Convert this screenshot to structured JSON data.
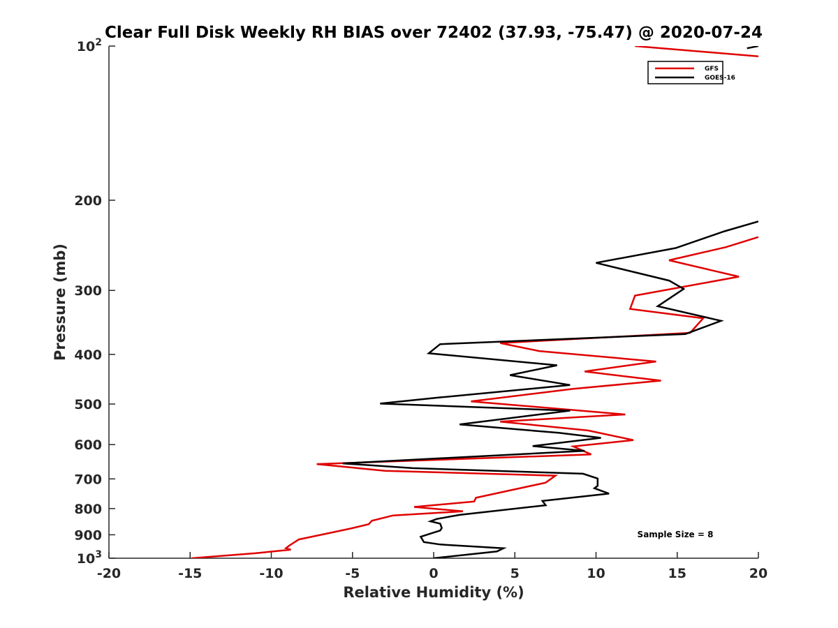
{
  "chart_data": {
    "type": "line",
    "title": "Clear Full Disk Weekly RH BIAS over 72402 (37.93, -75.47) @ 2020-07-24",
    "xlabel": "Relative Humidity (%)",
    "ylabel": "Pressure (mb)",
    "xlim": [
      -20,
      20
    ],
    "ylim": [
      100,
      1000
    ],
    "yscale": "log",
    "y_reversed": true,
    "x_ticks": [
      -20,
      -15,
      -10,
      -5,
      0,
      5,
      10,
      15,
      20
    ],
    "x_tick_labels": [
      "-20",
      "-15",
      "-10",
      "-5",
      "0",
      "5",
      "10",
      "15",
      "20"
    ],
    "y_ticks": [
      100,
      200,
      300,
      400,
      500,
      600,
      700,
      800,
      900,
      1000
    ],
    "y_tick_labels": [
      {
        "base": "10",
        "exp": "2"
      },
      {
        "base": "200",
        "exp": ""
      },
      {
        "base": "300",
        "exp": ""
      },
      {
        "base": "400",
        "exp": ""
      },
      {
        "base": "500",
        "exp": ""
      },
      {
        "base": "600",
        "exp": ""
      },
      {
        "base": "700",
        "exp": ""
      },
      {
        "base": "800",
        "exp": ""
      },
      {
        "base": "900",
        "exp": ""
      },
      {
        "base": "10",
        "exp": "3"
      }
    ],
    "legend_placement": "top-right",
    "annotation": "Sample Size = 8",
    "series": [
      {
        "name": "GFS",
        "color": "#e00000",
        "points": [
          [
            12.4,
            100
          ],
          [
            25,
            108
          ],
          [
            20,
            236
          ],
          [
            18,
            247
          ],
          [
            14.5,
            262
          ],
          [
            18.8,
            282
          ],
          [
            12.4,
            307
          ],
          [
            12.1,
            326
          ],
          [
            16.6,
            340
          ],
          [
            15.8,
            363
          ],
          [
            4.1,
            380
          ],
          [
            6.5,
            394
          ],
          [
            13.7,
            413
          ],
          [
            9.3,
            432
          ],
          [
            14,
            450
          ],
          [
            8.6,
            467
          ],
          [
            2.3,
            494
          ],
          [
            11.8,
            524
          ],
          [
            4.1,
            541
          ],
          [
            9.5,
            563
          ],
          [
            12.3,
            588
          ],
          [
            8.6,
            605
          ],
          [
            9.7,
            627
          ],
          [
            -7.2,
            655
          ],
          [
            -3,
            675
          ],
          [
            7.5,
            690
          ],
          [
            6.9,
            712
          ],
          [
            2.6,
            762
          ],
          [
            2.5,
            775
          ],
          [
            -1.2,
            794
          ],
          [
            1.8,
            810
          ],
          [
            -2.5,
            825
          ],
          [
            -3.8,
            845
          ],
          [
            -4,
            858
          ],
          [
            -5.1,
            875
          ],
          [
            -8.3,
            919
          ],
          [
            -8.9,
            945
          ],
          [
            -9.1,
            956
          ],
          [
            -8.8,
            962
          ],
          [
            -11,
            978
          ],
          [
            -14.9,
            1000
          ]
        ]
      },
      {
        "name": "GOES-16",
        "color": "#000000",
        "points": [
          [
            20,
            100
          ],
          [
            19.3,
            101
          ],
          [
            20,
            220
          ],
          [
            17.9,
            230
          ],
          [
            14.9,
            248
          ],
          [
            10,
            265
          ],
          [
            14.5,
            287
          ],
          [
            15.4,
            298
          ],
          [
            13.8,
            322
          ],
          [
            17.7,
            344
          ],
          [
            15.5,
            365
          ],
          [
            0.4,
            382
          ],
          [
            -0.3,
            398
          ],
          [
            7.6,
            420
          ],
          [
            4.7,
            439
          ],
          [
            8.4,
            459
          ],
          [
            0.5,
            485
          ],
          [
            -3.3,
            499
          ],
          [
            8.4,
            515
          ],
          [
            1.6,
            548
          ],
          [
            7.7,
            569
          ],
          [
            10.3,
            582
          ],
          [
            6.1,
            604
          ],
          [
            9.3,
            617
          ],
          [
            -5.6,
            653
          ],
          [
            -1.3,
            667
          ],
          [
            9.2,
            684
          ],
          [
            10.1,
            699
          ],
          [
            10.1,
            722
          ],
          [
            9.9,
            730
          ],
          [
            10.8,
            748
          ],
          [
            6.7,
            773
          ],
          [
            6.9,
            788
          ],
          [
            1.6,
            823
          ],
          [
            0.2,
            838
          ],
          [
            -0.2,
            847
          ],
          [
            0.4,
            856
          ],
          [
            0.5,
            873
          ],
          [
            0.4,
            883
          ],
          [
            -0.8,
            908
          ],
          [
            -0.6,
            930
          ],
          [
            0.4,
            940
          ],
          [
            4.3,
            956
          ],
          [
            3.9,
            970
          ],
          [
            0,
            1000
          ]
        ]
      }
    ]
  }
}
